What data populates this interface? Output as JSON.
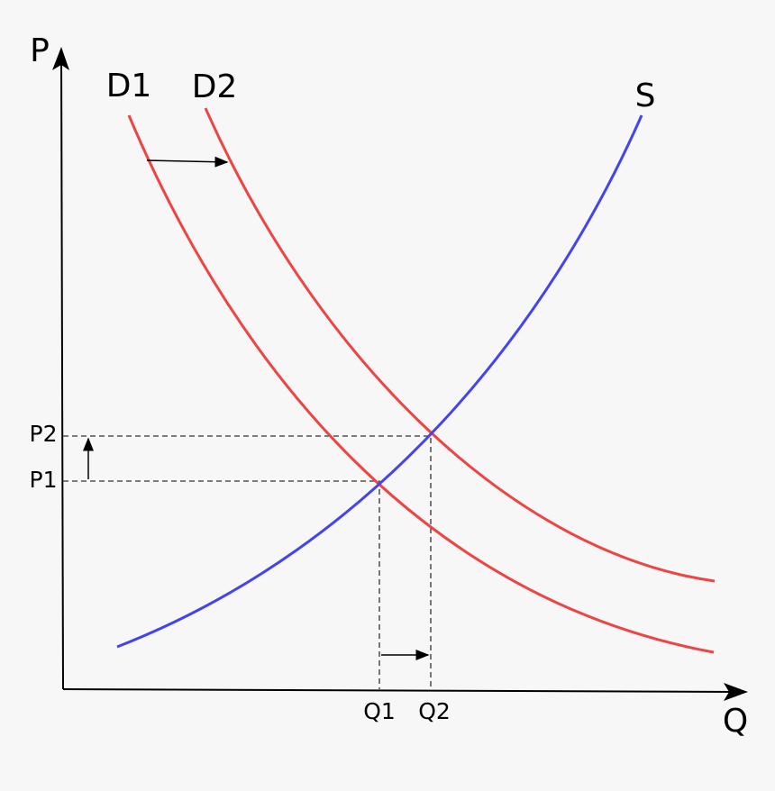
{
  "axes": {
    "y_label": "P",
    "x_label": "Q"
  },
  "curves": [
    {
      "label": "D1"
    },
    {
      "label": "D2"
    },
    {
      "label": "S"
    }
  ],
  "prices": [
    "P1",
    "P2"
  ],
  "quantities": [
    "Q1",
    "Q2"
  ]
}
